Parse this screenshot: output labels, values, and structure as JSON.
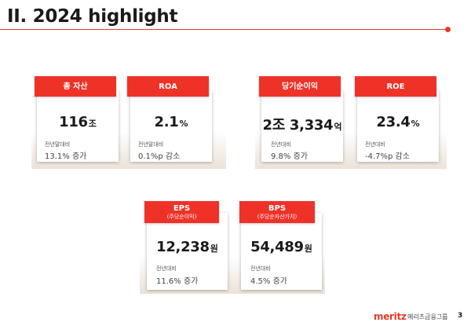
{
  "slide": {
    "title": "II. 2024 highlight",
    "page_number": "3"
  },
  "brand": {
    "logo": "meritz",
    "group_name": "메리츠금융그룹",
    "accent_color": "#e43b2a",
    "badge_color": "#ef3228"
  },
  "metrics": [
    {
      "label": "총 자산",
      "sublabel": "",
      "value": "116",
      "unit": "조",
      "comparison_label": "전년말대비",
      "comparison_value": "13.1% 증가"
    },
    {
      "label": "ROA",
      "sublabel": "",
      "value": "2.1",
      "unit": "%",
      "comparison_label": "전년말대비",
      "comparison_value": "0.1%p 감소"
    },
    {
      "label": "당기순이익",
      "sublabel": "",
      "value": "2조 3,334",
      "unit": "억",
      "comparison_label": "전년대비",
      "comparison_value": "9.8% 증가"
    },
    {
      "label": "ROE",
      "sublabel": "",
      "value": "23.4",
      "unit": "%",
      "comparison_label": "전년대비",
      "comparison_value": "-4.7%p 감소"
    },
    {
      "label": "EPS",
      "sublabel": "(주당순이익)",
      "value": "12,238",
      "unit": "원",
      "comparison_label": "전년대비",
      "comparison_value": "11.6% 증가"
    },
    {
      "label": "BPS",
      "sublabel": "(주당순자산가치)",
      "value": "54,489",
      "unit": "원",
      "comparison_label": "전년대비",
      "comparison_value": "4.5% 증가"
    }
  ]
}
